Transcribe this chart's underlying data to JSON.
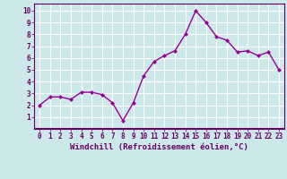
{
  "x": [
    0,
    1,
    2,
    3,
    4,
    5,
    6,
    7,
    8,
    9,
    10,
    11,
    12,
    13,
    14,
    15,
    16,
    17,
    18,
    19,
    20,
    21,
    22,
    23
  ],
  "y": [
    2,
    2.7,
    2.7,
    2.5,
    3.1,
    3.1,
    2.9,
    2.2,
    0.7,
    2.2,
    4.5,
    5.7,
    6.2,
    6.6,
    8.0,
    10.0,
    9.0,
    7.8,
    7.5,
    6.5,
    6.6,
    6.2,
    6.5,
    5.0
  ],
  "line_color": "#990099",
  "marker": "D",
  "marker_size": 2,
  "bg_color": "#cce8e8",
  "grid_color": "#ffffff",
  "xlabel": "Windchill (Refroidissement éolien,°C)",
  "xlim": [
    -0.5,
    23.5
  ],
  "ylim": [
    0,
    10.6
  ],
  "yticks": [
    1,
    2,
    3,
    4,
    5,
    6,
    7,
    8,
    9,
    10
  ],
  "xticks": [
    0,
    1,
    2,
    3,
    4,
    5,
    6,
    7,
    8,
    9,
    10,
    11,
    12,
    13,
    14,
    15,
    16,
    17,
    18,
    19,
    20,
    21,
    22,
    23
  ],
  "tick_label_size": 5.5,
  "xlabel_size": 6.5,
  "axis_color": "#660066",
  "spine_color": "#660066",
  "linewidth": 1.0
}
